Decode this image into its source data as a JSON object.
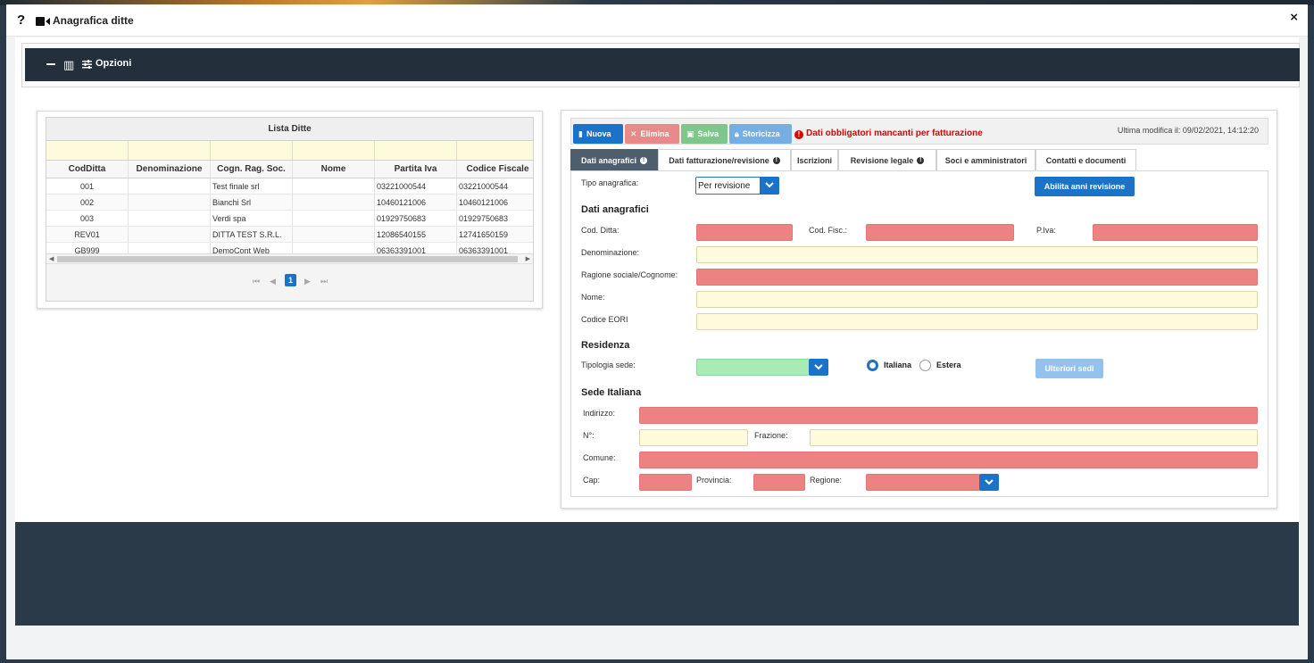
{
  "window": {
    "title": "Anagrafica ditte",
    "help": "?",
    "close": "×"
  },
  "options_bar": {
    "label": "Opzioni"
  },
  "grid": {
    "title": "Lista Ditte",
    "columns": [
      "CodDitta",
      "Denominazione",
      "Cogn. Rag. Soc.",
      "Nome",
      "Partita Iva",
      "Codice Fiscale"
    ],
    "rows": [
      [
        "001",
        "",
        "Test finale srl",
        "",
        "03221000544",
        "03221000544"
      ],
      [
        "002",
        "",
        "Bianchi Srl",
        "",
        "10460121006",
        "10460121006"
      ],
      [
        "003",
        "",
        "Verdi spa",
        "",
        "01929750683",
        "01929750683"
      ],
      [
        "REV01",
        "",
        "DITTA TEST S.R.L.",
        "",
        "12086540155",
        "12741650159"
      ],
      [
        "GB999",
        "",
        "DemoCont Web",
        "",
        "06363391001",
        "06363391001"
      ]
    ],
    "pager": {
      "current_page": "1"
    }
  },
  "toolbar": {
    "nuova": "Nuova",
    "elimina": "Elimina",
    "salva": "Salva",
    "storicizza": "Storicizza",
    "warning": "Dati obbligatori mancanti per fatturazione",
    "last_modified": "Ultima modifica il: 09/02/2021, 14:12:20"
  },
  "tabs": [
    {
      "label": "Dati anagrafici",
      "active": true
    },
    {
      "label": "Dati fatturazione/revisione",
      "active": false
    },
    {
      "label": "Iscrizioni",
      "active": false
    },
    {
      "label": "Revisione legale",
      "active": false
    },
    {
      "label": "Soci e amministratori",
      "active": false
    },
    {
      "label": "Contatti e documenti",
      "active": false
    }
  ],
  "form": {
    "tipo_anagrafica_label": "Tipo anagrafica:",
    "tipo_anagrafica_value": "Per revisione",
    "abilita_button": "Abilita anni revisione",
    "section_dati": "Dati anagrafici",
    "cod_ditta_label": "Cod. Ditta:",
    "cod_fisc_label": "Cod. Fisc.:",
    "piva_label": "P.Iva:",
    "denominazione_label": "Denominazione:",
    "ragione_label": "Ragione sociale/Cognome:",
    "nome_label": "Nome:",
    "eori_label": "Codice EORI",
    "section_residenza": "Residenza",
    "tipologia_label": "Tipologia sede:",
    "radio_italiana": "Italiana",
    "radio_estera": "Estera",
    "ulteriori_button": "Ulteriori sedi",
    "section_sede": "Sede Italiana",
    "indirizzo_label": "Indirizzo:",
    "numero_label": "N°:",
    "frazione_label": "Frazione:",
    "comune_label": "Comune:",
    "cap_label": "Cap:",
    "provincia_label": "Provincia:",
    "regione_label": "Regione:"
  },
  "colors": {
    "required_field": "#ec8282",
    "optional_field": "#fdfbdc",
    "primary": "#1a73c8",
    "header_dark": "#23303c"
  }
}
